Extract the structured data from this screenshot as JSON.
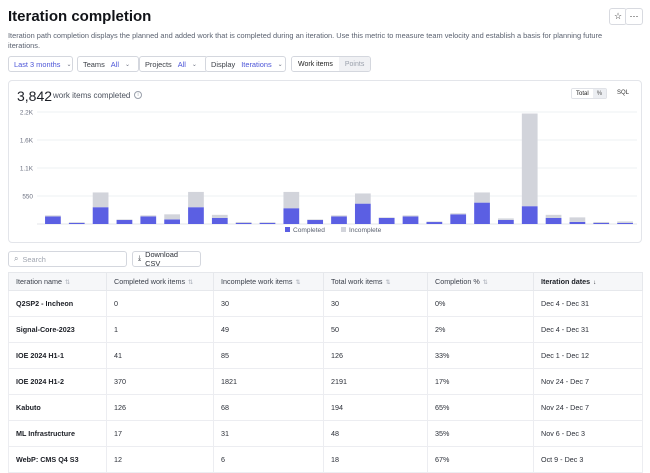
{
  "header": {
    "title": "Iteration completion",
    "description": "Iteration path completion displays the planned and added work that is completed during an iteration. Use this metric to measure team velocity and establish a basis for planning future iterations.",
    "star_icon": "star-icon",
    "more_icon": "more-icon"
  },
  "filters": {
    "date_range": "Last 3 months",
    "teams_label": "Teams",
    "teams_value": "All",
    "projects_label": "Projects",
    "projects_value": "All",
    "display_label": "Display",
    "display_value": "Iterations",
    "work_items_tab": "Work items",
    "points_tab": "Points"
  },
  "summary": {
    "count": "3,842",
    "label": "work items completed",
    "toggle_total": "Total",
    "toggle_percent": "%",
    "sql": "SQL"
  },
  "chart_data": {
    "type": "bar",
    "stacked": true,
    "y_ticks": [
      "2.2K",
      "1.6K",
      "1.1K",
      "550"
    ],
    "y_tick_values": [
      2200,
      1650,
      1100,
      550
    ],
    "ylim": [
      0,
      2200
    ],
    "x_labels_visible": false,
    "legend_position": "bottom",
    "series": [
      {
        "name": "Completed",
        "color": "#5b5fe3",
        "values": [
          150,
          20,
          330,
          80,
          150,
          90,
          330,
          120,
          20,
          20,
          310,
          80,
          150,
          400,
          120,
          150,
          40,
          190,
          420,
          80,
          350,
          120,
          40,
          20,
          20
        ]
      },
      {
        "name": "Incomplete",
        "color": "#d2d4db",
        "values": [
          20,
          15,
          290,
          10,
          20,
          100,
          300,
          60,
          20,
          15,
          320,
          10,
          20,
          200,
          10,
          20,
          10,
          20,
          200,
          30,
          1820,
          60,
          90,
          20,
          30
        ]
      }
    ]
  },
  "table": {
    "search_placeholder": "Search",
    "download_label": "Download CSV",
    "columns": [
      "Iteration name",
      "Completed work items",
      "Incomplete work items",
      "Total work items",
      "Completion %",
      "Iteration dates"
    ],
    "rows": [
      [
        "Q2SP2 - Incheon",
        "0",
        "30",
        "30",
        "0%",
        "Dec 4 - Dec 31"
      ],
      [
        "Signal-Core-2023",
        "1",
        "49",
        "50",
        "2%",
        "Dec 4 - Dec 31"
      ],
      [
        "IOE 2024 H1-1",
        "41",
        "85",
        "126",
        "33%",
        "Dec 1 - Dec 12"
      ],
      [
        "IOE 2024 H1-2",
        "370",
        "1821",
        "2191",
        "17%",
        "Nov 24 - Dec 7"
      ],
      [
        "Kabuto",
        "126",
        "68",
        "194",
        "65%",
        "Nov 24 - Dec 7"
      ],
      [
        "ML Infrastructure",
        "17",
        "31",
        "48",
        "35%",
        "Nov 6 - Dec 3"
      ],
      [
        "WebP: CMS Q4 S3",
        "12",
        "6",
        "18",
        "67%",
        "Oct 9 - Dec 3"
      ]
    ]
  }
}
